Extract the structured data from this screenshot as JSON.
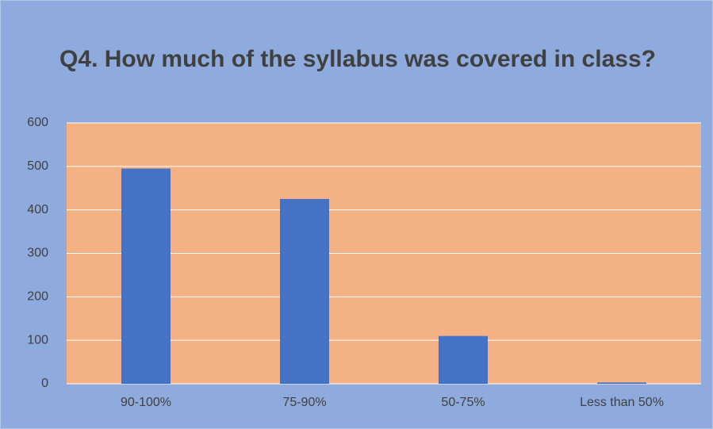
{
  "chart_data": {
    "type": "bar",
    "title": "Q4. How much of the syllabus was covered in class?",
    "categories": [
      "90-100%",
      "75-90%",
      "50-75%",
      "Less than 50%"
    ],
    "values": [
      495,
      425,
      110,
      3
    ],
    "color": "#4472c4",
    "ylim": [
      0,
      600
    ],
    "yticks": [
      0,
      100,
      200,
      300,
      400,
      500,
      600
    ],
    "grid": true
  }
}
